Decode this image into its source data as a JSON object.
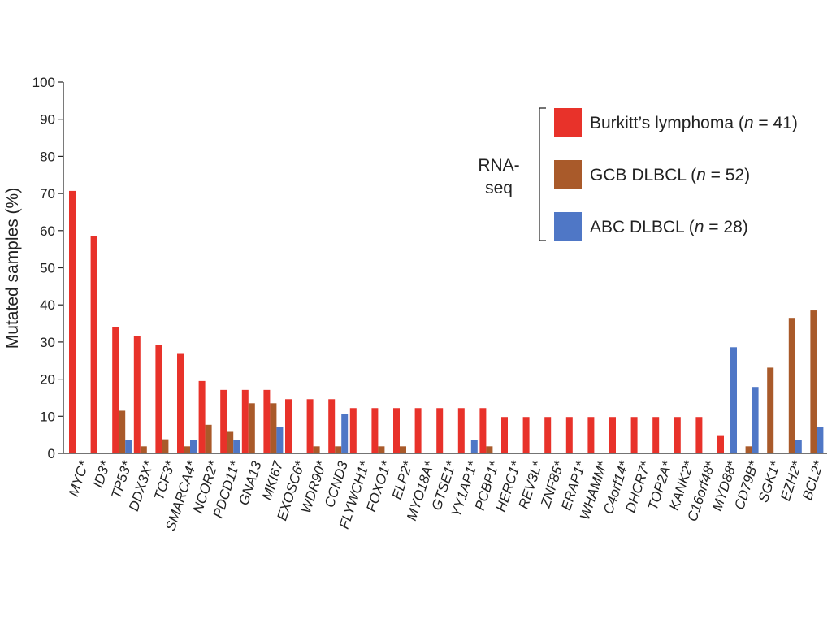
{
  "chart_data": {
    "type": "bar",
    "ylabel": "Mutated samples (%)",
    "xlabel": "",
    "ylim": [
      0,
      100
    ],
    "yticks": [
      0,
      10,
      20,
      30,
      40,
      50,
      60,
      70,
      80,
      90,
      100
    ],
    "grid": false,
    "legend_position": "top-right",
    "legend_group_label": "RNA-seq",
    "legend_group_label_lines": [
      "RNA-",
      "seq"
    ],
    "categories": [
      "MYC*",
      "ID3*",
      "TP53*",
      "DDX3X*",
      "TCF3*",
      "SMARCA4*",
      "NCOR2*",
      "PDCD11*",
      "GNA13",
      "MKI67",
      "EXOSC6*",
      "WDR90*",
      "CCND3",
      "FLYWCH1*",
      "FOXO1*",
      "ELP2*",
      "MYO18A*",
      "GTSE1*",
      "YY1AP1*",
      "PCBP1*",
      "HERC1*",
      "REV3L*",
      "ZNF85*",
      "ERAP1*",
      "WHAMM*",
      "C4orf14*",
      "DHCR7*",
      "TOP2A*",
      "KANK2*",
      "C16orf48*",
      "MYD88*",
      "CD79B*",
      "SGK1*",
      "EZH2*",
      "BCL2*"
    ],
    "series": [
      {
        "name": "Burkitt’s lymphoma (n = 41)",
        "legend_prefix": "Burkitt’s lymphoma (",
        "legend_n": "n",
        "legend_suffix": " = 41)",
        "color": "#e8322a",
        "values": [
          70.7,
          58.5,
          34.1,
          31.7,
          29.3,
          26.8,
          19.5,
          17.1,
          17.1,
          17.1,
          14.6,
          14.6,
          14.6,
          12.2,
          12.2,
          12.2,
          12.2,
          12.2,
          12.2,
          12.2,
          9.8,
          9.8,
          9.8,
          9.8,
          9.8,
          9.8,
          9.8,
          9.8,
          9.8,
          9.8,
          4.9,
          0,
          0,
          0,
          0
        ]
      },
      {
        "name": "GCB DLBCL (n = 52)",
        "legend_prefix": "GCB DLBCL (",
        "legend_n": "n",
        "legend_suffix": " = 52)",
        "color": "#a95a2a",
        "values": [
          0,
          0,
          11.5,
          1.9,
          3.8,
          1.9,
          7.7,
          5.8,
          13.5,
          13.5,
          0,
          1.9,
          1.9,
          0,
          1.9,
          1.9,
          0,
          0,
          0,
          1.9,
          0,
          0,
          0,
          0,
          0,
          0,
          0,
          0,
          0,
          0,
          0,
          1.9,
          23.1,
          36.5,
          38.5
        ]
      },
      {
        "name": "ABC DLBCL (n = 28)",
        "legend_prefix": "ABC DLBCL (",
        "legend_n": "n",
        "legend_suffix": " = 28)",
        "color": "#4f77c6",
        "values": [
          0,
          0,
          3.6,
          0,
          0,
          3.6,
          0,
          3.6,
          0,
          7.1,
          0,
          0,
          10.7,
          0,
          0,
          0,
          0,
          0,
          3.6,
          0,
          0,
          0,
          0,
          0,
          0,
          0,
          0,
          0,
          0,
          0,
          28.6,
          17.9,
          0,
          3.6,
          7.1
        ]
      }
    ]
  }
}
